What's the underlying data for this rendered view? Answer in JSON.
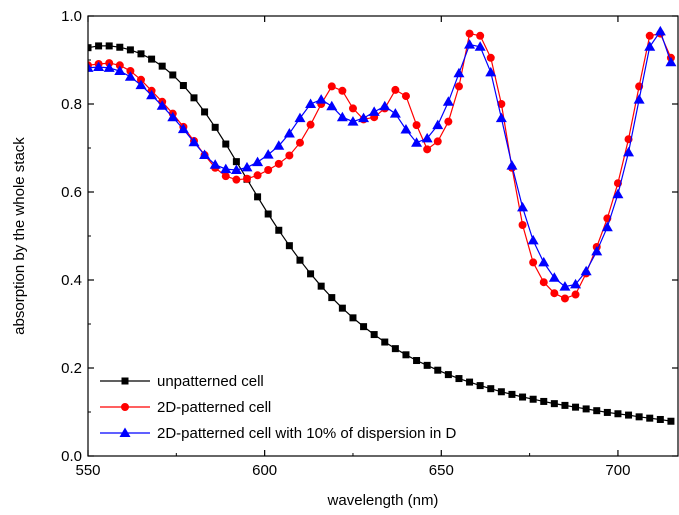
{
  "chart_data": {
    "type": "line",
    "xlabel": "wavelength (nm)",
    "ylabel": "absorption by the whole stack",
    "xlim": [
      550,
      717
    ],
    "ylim": [
      0.0,
      1.0
    ],
    "x_ticks": [
      "550",
      "600",
      "650",
      "700"
    ],
    "x_tick_values": [
      550,
      600,
      650,
      700
    ],
    "y_ticks": [
      "0.0",
      "0.2",
      "0.4",
      "0.6",
      "0.8",
      "1.0"
    ],
    "y_tick_values": [
      0.0,
      0.2,
      0.4,
      0.6,
      0.8,
      1.0
    ],
    "grid": false,
    "legend_position": "bottom-left",
    "series": [
      {
        "name": "unpatterned cell",
        "color": "#000000",
        "marker": "square",
        "x": [
          550,
          553,
          556,
          559,
          562,
          565,
          568,
          571,
          574,
          577,
          580,
          583,
          586,
          589,
          592,
          595,
          598,
          601,
          604,
          607,
          610,
          613,
          616,
          619,
          622,
          625,
          628,
          631,
          634,
          637,
          640,
          643,
          646,
          649,
          652,
          655,
          658,
          661,
          664,
          667,
          670,
          673,
          676,
          679,
          682,
          685,
          688,
          691,
          694,
          697,
          700,
          703,
          706,
          709,
          712,
          715
        ],
        "y": [
          0.928,
          0.932,
          0.932,
          0.929,
          0.923,
          0.914,
          0.902,
          0.886,
          0.866,
          0.842,
          0.814,
          0.782,
          0.747,
          0.709,
          0.669,
          0.629,
          0.589,
          0.55,
          0.513,
          0.478,
          0.445,
          0.414,
          0.386,
          0.36,
          0.336,
          0.314,
          0.294,
          0.276,
          0.259,
          0.244,
          0.23,
          0.217,
          0.206,
          0.195,
          0.185,
          0.176,
          0.168,
          0.16,
          0.153,
          0.146,
          0.14,
          0.134,
          0.129,
          0.124,
          0.119,
          0.115,
          0.111,
          0.107,
          0.103,
          0.099,
          0.096,
          0.093,
          0.089,
          0.086,
          0.083,
          0.079
        ]
      },
      {
        "name": "2D-patterned cell",
        "color": "#ff0000",
        "marker": "circle",
        "x": [
          550,
          553,
          556,
          559,
          562,
          565,
          568,
          571,
          574,
          577,
          580,
          583,
          586,
          589,
          592,
          595,
          598,
          601,
          604,
          607,
          610,
          613,
          616,
          619,
          622,
          625,
          628,
          631,
          634,
          637,
          640,
          643,
          646,
          649,
          652,
          655,
          658,
          661,
          664,
          667,
          670,
          673,
          676,
          679,
          682,
          685,
          688,
          691,
          694,
          697,
          700,
          703,
          706,
          709,
          712,
          715
        ],
        "y": [
          0.888,
          0.891,
          0.893,
          0.888,
          0.875,
          0.855,
          0.83,
          0.805,
          0.778,
          0.748,
          0.716,
          0.684,
          0.655,
          0.636,
          0.628,
          0.63,
          0.638,
          0.65,
          0.664,
          0.683,
          0.712,
          0.753,
          0.8,
          0.84,
          0.83,
          0.79,
          0.765,
          0.77,
          0.79,
          0.832,
          0.818,
          0.752,
          0.697,
          0.715,
          0.76,
          0.84,
          0.96,
          0.955,
          0.905,
          0.8,
          0.655,
          0.525,
          0.44,
          0.395,
          0.37,
          0.358,
          0.367,
          0.415,
          0.475,
          0.54,
          0.62,
          0.72,
          0.84,
          0.955,
          0.96,
          0.905
        ]
      },
      {
        "name": "2D-patterned cell with 10% of dispersion in D",
        "color": "#0000ff",
        "marker": "triangle",
        "x": [
          550,
          553,
          556,
          559,
          562,
          565,
          568,
          571,
          574,
          577,
          580,
          583,
          586,
          589,
          592,
          595,
          598,
          601,
          604,
          607,
          610,
          613,
          616,
          619,
          622,
          625,
          628,
          631,
          634,
          637,
          640,
          643,
          646,
          649,
          652,
          655,
          658,
          661,
          664,
          667,
          670,
          673,
          676,
          679,
          682,
          685,
          688,
          691,
          694,
          697,
          700,
          703,
          706,
          709,
          712,
          715
        ],
        "y": [
          0.882,
          0.884,
          0.882,
          0.875,
          0.862,
          0.843,
          0.82,
          0.796,
          0.77,
          0.743,
          0.713,
          0.684,
          0.662,
          0.652,
          0.65,
          0.656,
          0.668,
          0.685,
          0.705,
          0.733,
          0.768,
          0.8,
          0.81,
          0.795,
          0.77,
          0.76,
          0.768,
          0.782,
          0.795,
          0.778,
          0.742,
          0.712,
          0.722,
          0.752,
          0.805,
          0.87,
          0.935,
          0.93,
          0.872,
          0.768,
          0.66,
          0.565,
          0.49,
          0.44,
          0.405,
          0.385,
          0.39,
          0.42,
          0.465,
          0.52,
          0.595,
          0.69,
          0.81,
          0.93,
          0.965,
          0.895
        ]
      }
    ]
  }
}
